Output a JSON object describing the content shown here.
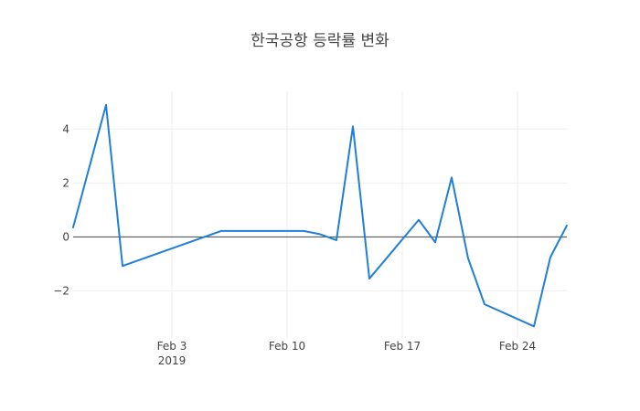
{
  "chart_data": {
    "type": "line",
    "title": "한국공항 등락률 변화",
    "xlabel": "",
    "ylabel": "",
    "x_axis": {
      "type": "date",
      "range": [
        "2019-01-28",
        "2019-02-27"
      ],
      "ticks": [
        {
          "date": "2019-02-03",
          "label": "Feb 3",
          "sublabel": "2019"
        },
        {
          "date": "2019-02-10",
          "label": "Feb 10",
          "sublabel": ""
        },
        {
          "date": "2019-02-17",
          "label": "Feb 17",
          "sublabel": ""
        },
        {
          "date": "2019-02-24",
          "label": "Feb 24",
          "sublabel": ""
        }
      ],
      "grid": true
    },
    "y_axis": {
      "range": [
        -3.75,
        5.4
      ],
      "ticks": [
        {
          "value": 4,
          "label": "4"
        },
        {
          "value": 2,
          "label": "2"
        },
        {
          "value": 0,
          "label": "0"
        },
        {
          "value": -2,
          "label": "−2"
        }
      ],
      "grid": true,
      "zeroline": true
    },
    "legend": "none",
    "colors": {
      "line": "#1f7fd8",
      "grid": "#eeeeee",
      "zeroline": "#444444",
      "text": "#444444",
      "background": "#ffffff"
    },
    "series": [
      {
        "points": [
          {
            "x": "2019-01-28",
            "y": 0.35
          },
          {
            "x": "2019-01-30",
            "y": 4.9
          },
          {
            "x": "2019-01-31",
            "y": -1.08
          },
          {
            "x": "2019-02-06",
            "y": 0.22
          },
          {
            "x": "2019-02-07",
            "y": 0.22
          },
          {
            "x": "2019-02-08",
            "y": 0.22
          },
          {
            "x": "2019-02-11",
            "y": 0.22
          },
          {
            "x": "2019-02-12",
            "y": 0.1
          },
          {
            "x": "2019-02-13",
            "y": -0.12
          },
          {
            "x": "2019-02-14",
            "y": 4.1
          },
          {
            "x": "2019-02-15",
            "y": -1.55
          },
          {
            "x": "2019-02-18",
            "y": 0.63
          },
          {
            "x": "2019-02-19",
            "y": -0.2
          },
          {
            "x": "2019-02-20",
            "y": 2.2
          },
          {
            "x": "2019-02-21",
            "y": -0.8
          },
          {
            "x": "2019-02-22",
            "y": -2.5
          },
          {
            "x": "2019-02-25",
            "y": -3.32
          },
          {
            "x": "2019-02-26",
            "y": -0.75
          },
          {
            "x": "2019-02-27",
            "y": 0.42
          }
        ]
      }
    ]
  }
}
